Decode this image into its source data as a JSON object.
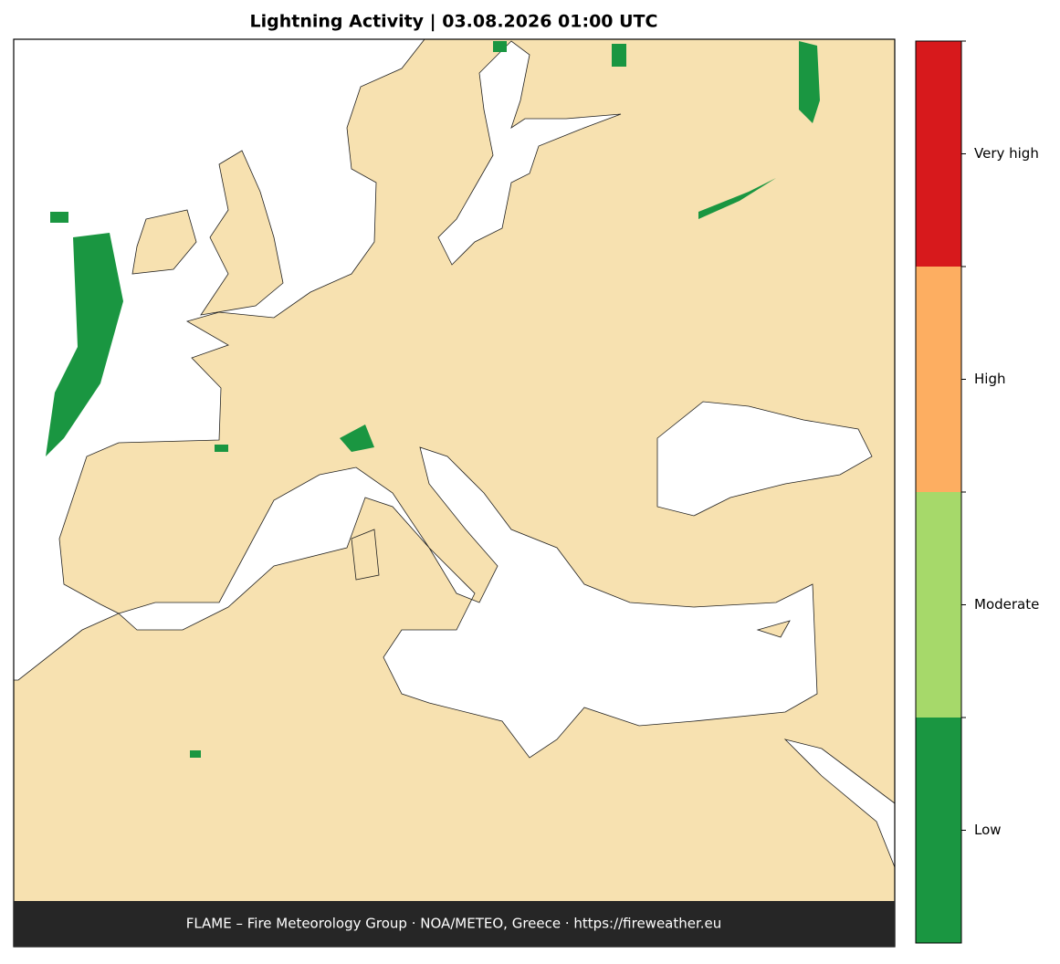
{
  "title": "Lightning Activity  |  03.08.2026 01:00 UTC",
  "colorbar": {
    "levels": [
      {
        "label": "Low",
        "color": "#1a9641"
      },
      {
        "label": "Moderate",
        "color": "#a6d96a"
      },
      {
        "label": "High",
        "color": "#fdae61"
      },
      {
        "label": "Very high",
        "color": "#d7191c"
      }
    ]
  },
  "footer": "FLAME – Fire Meteorology Group · NOA/METEO, Greece · https://fireweather.eu"
}
